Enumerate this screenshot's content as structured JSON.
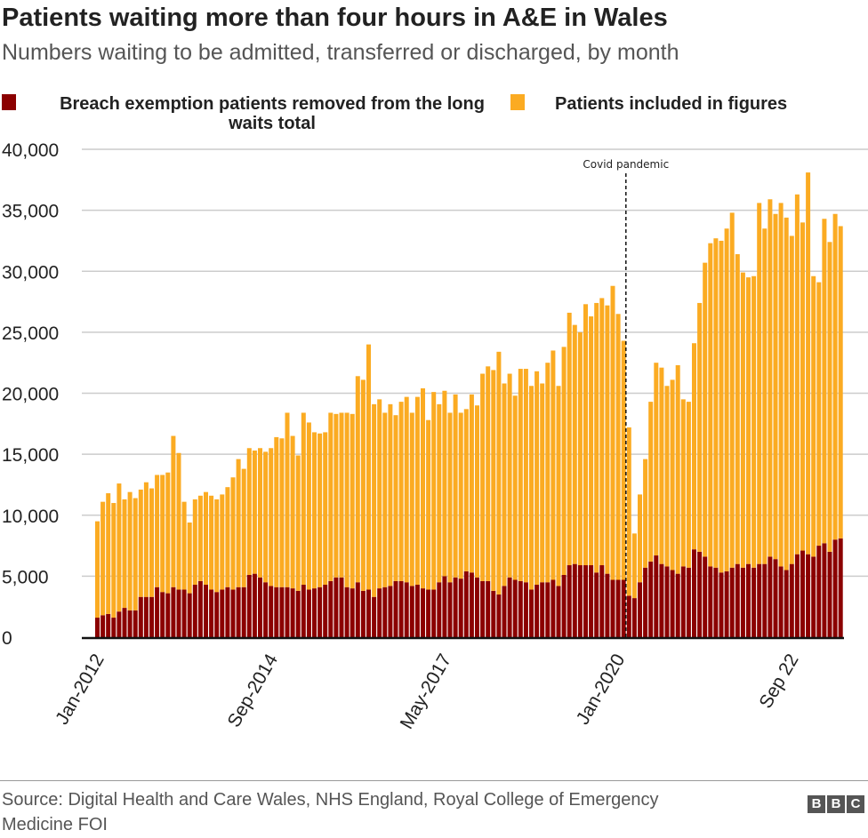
{
  "title": "Patients waiting more than four hours in A&E in Wales",
  "subtitle": "Numbers waiting to be admitted, transferred or discharged, by month",
  "source": "Source: Digital Health and Care Wales, NHS England, Royal College of Emergency Medicine FOI",
  "logo": "BBC",
  "chart_data": {
    "type": "bar",
    "stacked": true,
    "legend_position": "top",
    "grid": true,
    "ylim": [
      0,
      40000
    ],
    "yticks": [
      "0",
      "5,000",
      "10,000",
      "15,000",
      "20,000",
      "25,000",
      "30,000",
      "35,000",
      "40,000"
    ],
    "xticks": [
      {
        "label": "Jan-2012",
        "index": 0
      },
      {
        "label": "Sep-2014",
        "index": 32
      },
      {
        "label": "May-2017",
        "index": 64
      },
      {
        "label": "Jan-2020",
        "index": 96
      },
      {
        "label": "Sep 22",
        "index": 128
      }
    ],
    "annotation": {
      "label": "Covid pandemic",
      "category": "Mar-2020"
    },
    "categories": [
      "Jan-2012",
      "Feb-2012",
      "Mar-2012",
      "Apr-2012",
      "May-2012",
      "Jun-2012",
      "Jul-2012",
      "Aug-2012",
      "Sep-2012",
      "Oct-2012",
      "Nov-2012",
      "Dec-2012",
      "Jan-2013",
      "Feb-2013",
      "Mar-2013",
      "Apr-2013",
      "May-2013",
      "Jun-2013",
      "Jul-2013",
      "Aug-2013",
      "Sep-2013",
      "Oct-2013",
      "Nov-2013",
      "Dec-2013",
      "Jan-2014",
      "Feb-2014",
      "Mar-2014",
      "Apr-2014",
      "May-2014",
      "Jun-2014",
      "Jul-2014",
      "Aug-2014",
      "Sep-2014",
      "Oct-2014",
      "Nov-2014",
      "Dec-2014",
      "Jan-2015",
      "Feb-2015",
      "Mar-2015",
      "Apr-2015",
      "May-2015",
      "Jun-2015",
      "Jul-2015",
      "Aug-2015",
      "Sep-2015",
      "Oct-2015",
      "Nov-2015",
      "Dec-2015",
      "Jan-2016",
      "Feb-2016",
      "Mar-2016",
      "Apr-2016",
      "May-2016",
      "Jun-2016",
      "Jul-2016",
      "Aug-2016",
      "Sep-2016",
      "Oct-2016",
      "Nov-2016",
      "Dec-2016",
      "Jan-2017",
      "Feb-2017",
      "Mar-2017",
      "Apr-2017",
      "May-2017",
      "Jun-2017",
      "Jul-2017",
      "Aug-2017",
      "Sep-2017",
      "Oct-2017",
      "Nov-2017",
      "Dec-2017",
      "Jan-2018",
      "Feb-2018",
      "Mar-2018",
      "Apr-2018",
      "May-2018",
      "Jun-2018",
      "Jul-2018",
      "Aug-2018",
      "Sep-2018",
      "Oct-2018",
      "Nov-2018",
      "Dec-2018",
      "Jan-2019",
      "Feb-2019",
      "Mar-2019",
      "Apr-2019",
      "May-2019",
      "Jun-2019",
      "Jul-2019",
      "Aug-2019",
      "Sep-2019",
      "Oct-2019",
      "Nov-2019",
      "Dec-2019",
      "Jan-2020",
      "Feb-2020",
      "Mar-2020",
      "Apr-2020",
      "May-2020",
      "Jun-2020",
      "Jul-2020",
      "Aug-2020",
      "Sep-2020",
      "Oct-2020",
      "Nov-2020",
      "Dec-2020",
      "Jan-2021",
      "Feb-2021",
      "Mar-2021",
      "Apr-2021",
      "May-2021",
      "Jun-2021",
      "Jul-2021",
      "Aug-2021",
      "Sep-2021",
      "Oct-2021",
      "Nov-2021",
      "Dec-2021",
      "Jan-2022",
      "Feb-2022",
      "Mar-2022",
      "Apr-2022",
      "May-2022",
      "Jun-2022",
      "Jul-2022",
      "Aug-2022",
      "Sep-2022",
      "Oct-2022",
      "Nov-2022",
      "Dec-2022",
      "Jan-2023",
      "Feb-2023",
      "Mar-2023",
      "Apr-2023",
      "May-2023",
      "Jun-2023"
    ],
    "series": [
      {
        "name": "Breach exemption patients removed from the long waits total",
        "color": "#8b0000",
        "values": [
          1600,
          1800,
          1900,
          1600,
          2100,
          2400,
          2200,
          2200,
          3300,
          3300,
          3300,
          4100,
          3700,
          3600,
          4100,
          3900,
          3900,
          3600,
          4300,
          4600,
          4300,
          3900,
          3700,
          3900,
          4100,
          3900,
          4100,
          4100,
          5100,
          5200,
          4900,
          4500,
          4200,
          4100,
          4100,
          4100,
          4000,
          3800,
          4300,
          3900,
          4000,
          4100,
          4300,
          4600,
          4900,
          4900,
          4100,
          4000,
          4500,
          3800,
          3900,
          3300,
          4000,
          4100,
          4200,
          4600,
          4600,
          4500,
          4200,
          4300,
          4000,
          3900,
          3900,
          4500,
          5000,
          4500,
          4900,
          4800,
          5400,
          5300,
          4900,
          4600,
          4600,
          3800,
          3500,
          4200,
          4900,
          4700,
          4600,
          4500,
          3900,
          4300,
          4500,
          4500,
          4700,
          4200,
          5100,
          5900,
          6000,
          5900,
          5900,
          5900,
          5300,
          5900,
          5200,
          4700,
          4700,
          4700,
          3400,
          3200,
          4500,
          5700,
          6200,
          6700,
          6000,
          5800,
          5500,
          5200,
          5800,
          5700,
          7200,
          7000,
          6600,
          5800,
          5700,
          5300,
          5400,
          5700,
          6000,
          5700,
          6000,
          5700,
          6000,
          6000,
          6600,
          6400,
          5800,
          5500,
          6000,
          6800,
          7100,
          6800,
          6600,
          7500,
          7700,
          7000,
          8000,
          8100
        ]
      },
      {
        "name": "Patients included in figures",
        "color": "#fbab22",
        "values": [
          7900,
          9300,
          9900,
          9400,
          10500,
          8900,
          9700,
          9200,
          8800,
          9400,
          8900,
          9200,
          9600,
          9900,
          12400,
          11200,
          7200,
          5800,
          7000,
          7000,
          7600,
          7700,
          7600,
          7800,
          8200,
          9200,
          10500,
          9700,
          10400,
          10100,
          10600,
          10700,
          11300,
          12300,
          12200,
          14300,
          12500,
          11100,
          14100,
          13700,
          12800,
          12600,
          12500,
          13800,
          13400,
          13500,
          14300,
          14300,
          16900,
          17300,
          20100,
          15800,
          15500,
          14300,
          14900,
          13600,
          14700,
          15200,
          14200,
          15400,
          16400,
          13900,
          16200,
          14600,
          15200,
          13900,
          15000,
          13600,
          13300,
          14600,
          14100,
          17000,
          17600,
          18100,
          19900,
          16600,
          16700,
          15100,
          17400,
          17500,
          16700,
          17500,
          16300,
          18000,
          18800,
          16400,
          18700,
          20700,
          19600,
          19100,
          21400,
          20400,
          22100,
          21900,
          22000,
          24100,
          21800,
          19600,
          13800,
          5300,
          7200,
          8900,
          13100,
          15800,
          16100,
          14800,
          15600,
          17100,
          13700,
          13600,
          16900,
          20400,
          24100,
          26500,
          27000,
          27200,
          28100,
          29100,
          25400,
          24200,
          23500,
          23900,
          29600,
          27500,
          29300,
          28300,
          29800,
          28900,
          26900,
          29500,
          26900,
          31300,
          23000,
          21600,
          26600,
          25400,
          26700,
          25600
        ]
      }
    ]
  }
}
